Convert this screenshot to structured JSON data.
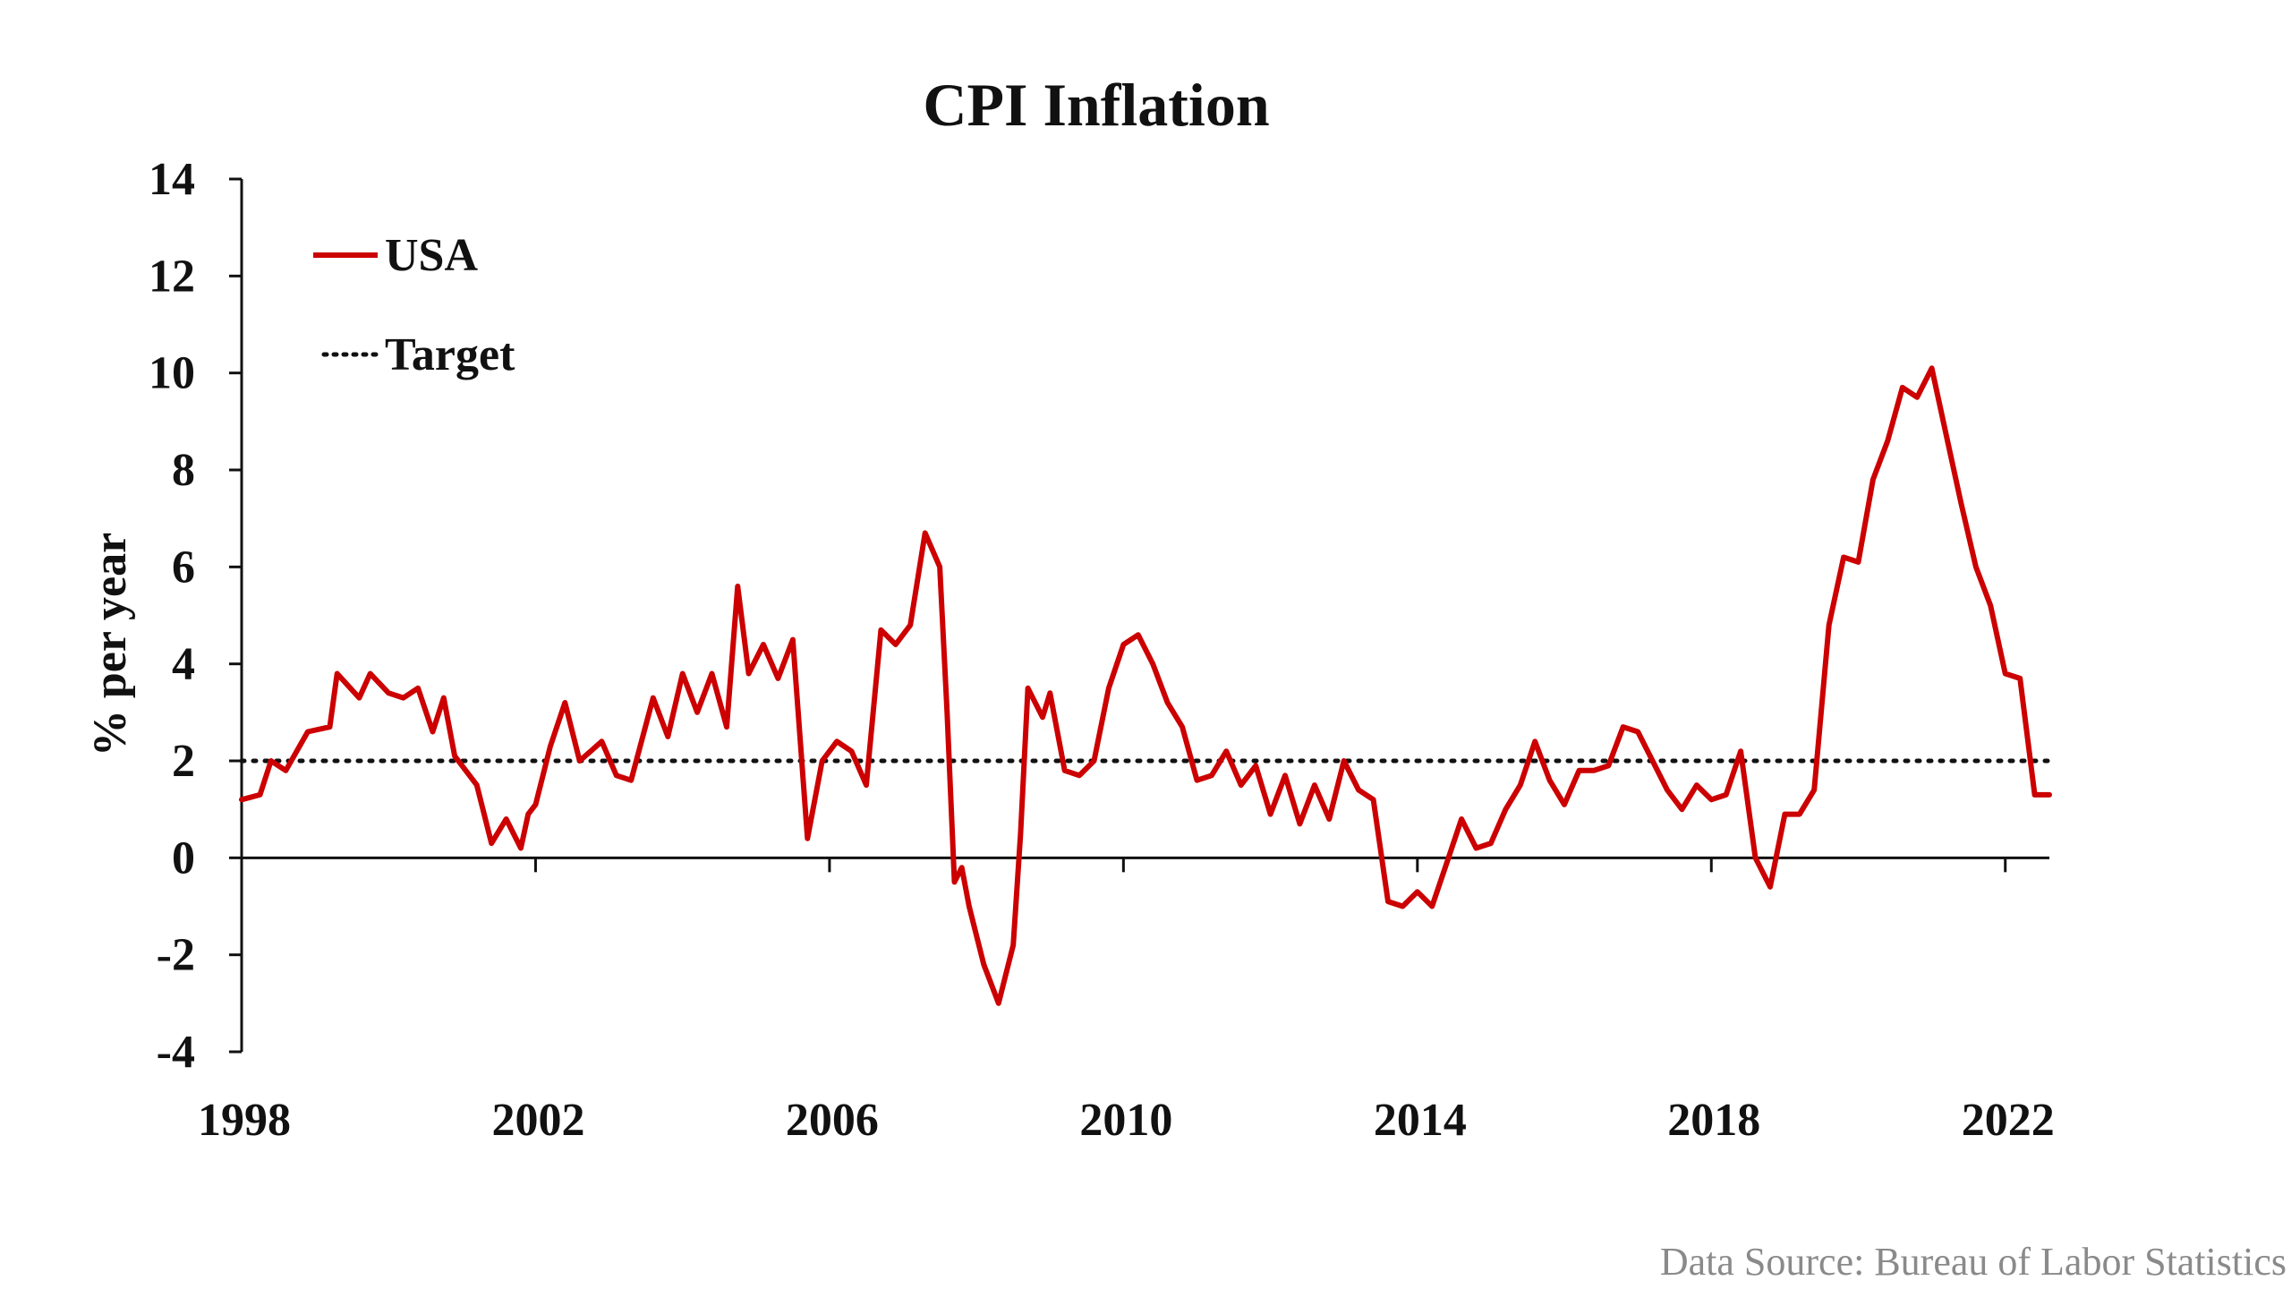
{
  "chart_data": {
    "type": "line",
    "title": "CPI Inflation",
    "ylabel": "% per year",
    "xlabel": "",
    "source": "Data Source: Bureau of Labor Statistics",
    "xlim": [
      1998,
      2022.6
    ],
    "ylim": [
      -4,
      14
    ],
    "x_ticks": [
      "1998",
      "2002",
      "2006",
      "2010",
      "2014",
      "2018",
      "2022"
    ],
    "y_ticks": [
      "14",
      "12",
      "10",
      "8",
      "6",
      "4",
      "2",
      "0",
      "-2",
      "-4"
    ],
    "grid": false,
    "legend_position": "top-left",
    "series": [
      {
        "name": "USA",
        "color": "#cc0000",
        "style": "solid",
        "x": [
          1998.0,
          1998.25,
          1998.4,
          1998.6,
          1998.9,
          1999.2,
          1999.3,
          1999.6,
          1999.75,
          2000.0,
          2000.2,
          2000.4,
          2000.6,
          2000.75,
          2000.9,
          2001.2,
          2001.4,
          2001.6,
          2001.8,
          2001.9,
          2002.0,
          2002.2,
          2002.4,
          2002.6,
          2002.75,
          2002.9,
          2003.1,
          2003.3,
          2003.6,
          2003.8,
          2004.0,
          2004.2,
          2004.4,
          2004.6,
          2004.75,
          2004.9,
          2005.1,
          2005.3,
          2005.5,
          2005.7,
          2005.9,
          2006.1,
          2006.3,
          2006.5,
          2006.7,
          2006.9,
          2007.1,
          2007.3,
          2007.5,
          2007.6,
          2007.7,
          2007.8,
          2007.9,
          2008.1,
          2008.3,
          2008.5,
          2008.6,
          2008.7,
          2008.9,
          2009.0,
          2009.2,
          2009.4,
          2009.6,
          2009.8,
          2010.0,
          2010.2,
          2010.4,
          2010.6,
          2010.8,
          2011.0,
          2011.2,
          2011.4,
          2011.6,
          2011.8,
          2012.0,
          2012.2,
          2012.4,
          2012.6,
          2012.8,
          2013.0,
          2013.2,
          2013.4,
          2013.6,
          2013.8,
          2014.0,
          2014.2,
          2014.4,
          2014.6,
          2014.8,
          2015.0,
          2015.2,
          2015.4,
          2015.6,
          2015.8,
          2016.0,
          2016.2,
          2016.4,
          2016.6,
          2016.8,
          2017.0,
          2017.2,
          2017.4,
          2017.6,
          2017.8,
          2018.0,
          2018.2,
          2018.4,
          2018.6,
          2018.8,
          2019.0,
          2019.2,
          2019.4,
          2019.6,
          2019.8,
          2020.0,
          2020.2,
          2020.4,
          2020.6,
          2020.8,
          2021.0,
          2021.2,
          2021.4,
          2021.6,
          2021.8,
          2022.0,
          2022.2,
          2022.4,
          2022.6
        ],
        "values": [
          1.2,
          1.3,
          2.0,
          1.8,
          2.6,
          2.7,
          3.8,
          3.3,
          3.8,
          3.4,
          3.3,
          3.5,
          2.6,
          3.3,
          2.1,
          1.5,
          0.3,
          0.8,
          0.2,
          0.9,
          1.1,
          2.3,
          3.2,
          2.0,
          2.2,
          2.4,
          1.7,
          1.6,
          3.3,
          2.5,
          3.8,
          3.0,
          3.8,
          2.7,
          5.6,
          3.8,
          4.4,
          3.7,
          4.5,
          0.4,
          2.0,
          2.4,
          2.2,
          1.5,
          4.7,
          4.4,
          4.8,
          6.7,
          6.0,
          3.0,
          -0.5,
          -0.2,
          -1.0,
          -2.2,
          -3.0,
          -1.8,
          0.5,
          3.5,
          2.9,
          3.4,
          1.8,
          1.7,
          2.0,
          3.5,
          4.4,
          4.6,
          4.0,
          3.2,
          2.7,
          1.6,
          1.7,
          2.2,
          1.5,
          1.9,
          0.9,
          1.7,
          0.7,
          1.5,
          0.8,
          2.0,
          1.4,
          1.2,
          -0.9,
          -1.0,
          -0.7,
          -1.0,
          -0.1,
          0.8,
          0.2,
          0.3,
          1.0,
          1.5,
          2.4,
          1.6,
          1.1,
          1.8,
          1.8,
          1.9,
          2.7,
          2.6,
          2.0,
          1.4,
          1.0,
          1.5,
          1.2,
          1.3,
          2.2,
          0.0,
          -0.6,
          0.9,
          0.9,
          1.4,
          4.8,
          6.2,
          6.1,
          7.8,
          8.6,
          9.7,
          9.5,
          10.1,
          8.7,
          7.3,
          6.0,
          5.2,
          3.8,
          3.7,
          1.3,
          1.3
        ]
      },
      {
        "name": "Target",
        "color": "#111111",
        "style": "dotted",
        "x": [
          1998.0,
          2022.6
        ],
        "values": [
          2,
          2
        ]
      }
    ]
  }
}
